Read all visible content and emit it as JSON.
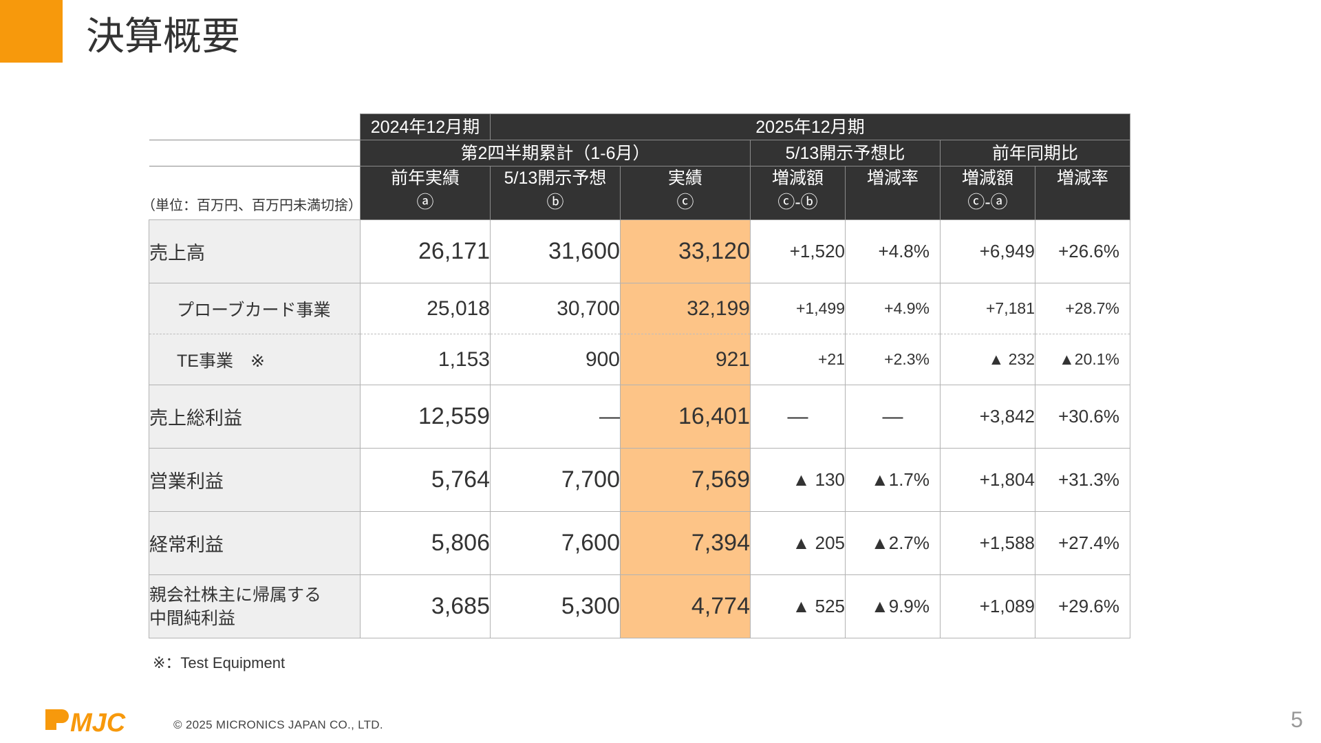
{
  "title": "決算概要",
  "unit_note": "（単位：百万円、百万円未満切捨）",
  "header": {
    "prev_period": "2024年12月期",
    "curr_period": "2025年12月期",
    "cumulative": "第2四半期累計（1-6月）",
    "vs_forecast": "5/13開示予想比",
    "vs_prev_year": "前年同期比",
    "columns": [
      {
        "label": "前年実績",
        "sub": "ⓐ"
      },
      {
        "label": "5/13開示予想",
        "sub": "ⓑ"
      },
      {
        "label": "実績",
        "sub": "ⓒ"
      },
      {
        "label": "増減額",
        "sub": "ⓒ-ⓑ"
      },
      {
        "label": "増減率",
        "sub": ""
      },
      {
        "label": "増減額",
        "sub": "ⓒ-ⓐ"
      },
      {
        "label": "増減率",
        "sub": ""
      }
    ]
  },
  "rows": [
    {
      "label": "売上高",
      "prev": "26,171",
      "forecast": "31,600",
      "actual": "33,120",
      "diff_fc": "+1,520",
      "rate_fc": "+4.8%",
      "diff_py": "+6,949",
      "rate_py": "+26.6%"
    },
    {
      "label": "プローブカード事業",
      "prev": "25,018",
      "forecast": "30,700",
      "actual": "32,199",
      "diff_fc": "+1,499",
      "rate_fc": "+4.9%",
      "diff_py": "+7,181",
      "rate_py": "+28.7%"
    },
    {
      "label": "TE事業　※",
      "prev": "1,153",
      "forecast": "900",
      "actual": "921",
      "diff_fc": "+21",
      "rate_fc": "+2.3%",
      "diff_py": "▲ 232",
      "rate_py": "▲20.1%"
    },
    {
      "label": "売上総利益",
      "prev": "12,559",
      "forecast": "—",
      "actual": "16,401",
      "diff_fc": "—",
      "rate_fc": "—",
      "diff_py": "+3,842",
      "rate_py": "+30.6%"
    },
    {
      "label": "営業利益",
      "prev": "5,764",
      "forecast": "7,700",
      "actual": "7,569",
      "diff_fc": "▲ 130",
      "rate_fc": "▲1.7%",
      "diff_py": "+1,804",
      "rate_py": "+31.3%"
    },
    {
      "label": "経常利益",
      "prev": "5,806",
      "forecast": "7,600",
      "actual": "7,394",
      "diff_fc": "▲ 205",
      "rate_fc": "▲2.7%",
      "diff_py": "+1,588",
      "rate_py": "+27.4%"
    },
    {
      "label_line1": "親会社株主に帰属する",
      "label_line2": "中間純利益",
      "prev": "3,685",
      "forecast": "5,300",
      "actual": "4,774",
      "diff_fc": "▲ 525",
      "rate_fc": "▲9.9%",
      "diff_py": "+1,089",
      "rate_py": "+29.6%"
    }
  ],
  "footnote": "※：Test Equipment",
  "logo_text": "MJC",
  "copyright": "© 2025 MICRONICS JAPAN CO., LTD.",
  "page_number": "5",
  "colors": {
    "accent": "#f7990c",
    "header_bg": "#333333",
    "actual_bg": "#fdc487",
    "label_bg": "#efefef"
  }
}
